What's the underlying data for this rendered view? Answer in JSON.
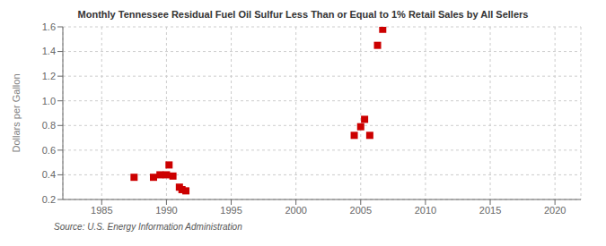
{
  "chart_data": {
    "type": "scatter",
    "title": "Monthly Tennessee Residual Fuel Oil Sulfur Less Than or Equal to 1% Retail Sales by All Sellers",
    "ylabel": "Dollars per Gallon",
    "annotations": [
      "Source: U.S. Energy Information Administration"
    ],
    "x": [
      1987.5,
      1989.0,
      1989.5,
      1990.0,
      1990.2,
      1990.5,
      1991.0,
      1991.2,
      1991.5,
      2004.5,
      2005.0,
      2005.3,
      2005.7,
      2006.3,
      2006.7
    ],
    "values": [
      0.38,
      0.38,
      0.4,
      0.4,
      0.48,
      0.39,
      0.3,
      0.28,
      0.27,
      0.72,
      0.79,
      0.85,
      0.72,
      1.45,
      1.58
    ],
    "color": "#cc0000",
    "marker": "square",
    "xlim": [
      1982,
      2022
    ],
    "ylim": [
      0.2,
      1.6
    ],
    "xticks": [
      1985,
      1990,
      1995,
      2000,
      2005,
      2010,
      2015,
      2020
    ],
    "yticks": [
      0.2,
      0.4,
      0.6,
      0.8,
      {
        "value": 1.0,
        "label": "1.0"
      },
      1.2,
      1.4,
      1.6
    ],
    "grid": true
  }
}
